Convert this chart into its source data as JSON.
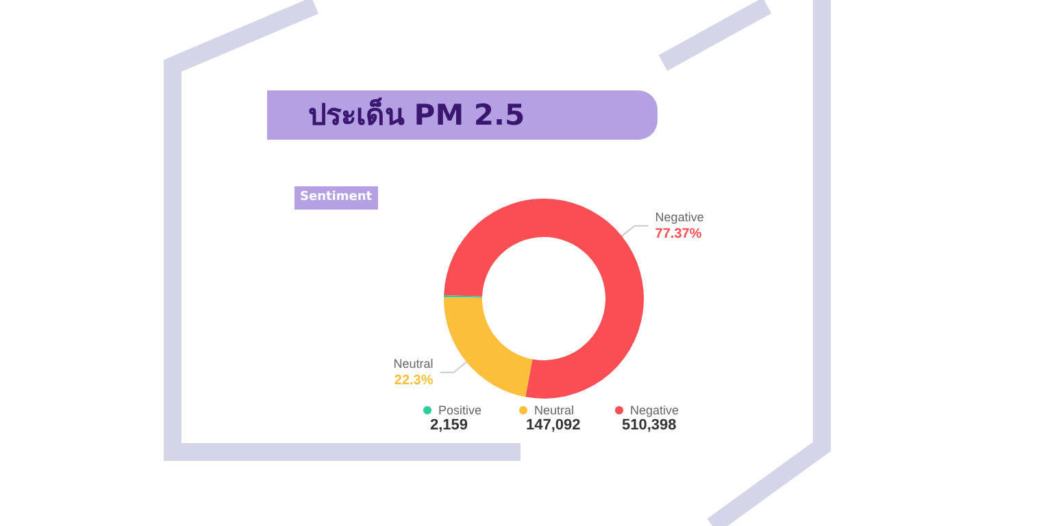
{
  "chart_data": {
    "type": "donut",
    "title": "ประเด็น PM 2.5",
    "subtitle": "Sentiment",
    "categories": [
      "Positive",
      "Neutral",
      "Negative"
    ],
    "values": [
      0.33,
      22.3,
      77.37
    ],
    "colors": [
      "#2ecc9a",
      "#fbbf3c",
      "#f94f54"
    ],
    "value_labels": [
      null,
      "22.3%",
      "77.37%"
    ],
    "annotations": [
      "2,159",
      "147,092",
      "510,398"
    ],
    "legend": "bottom"
  }
}
